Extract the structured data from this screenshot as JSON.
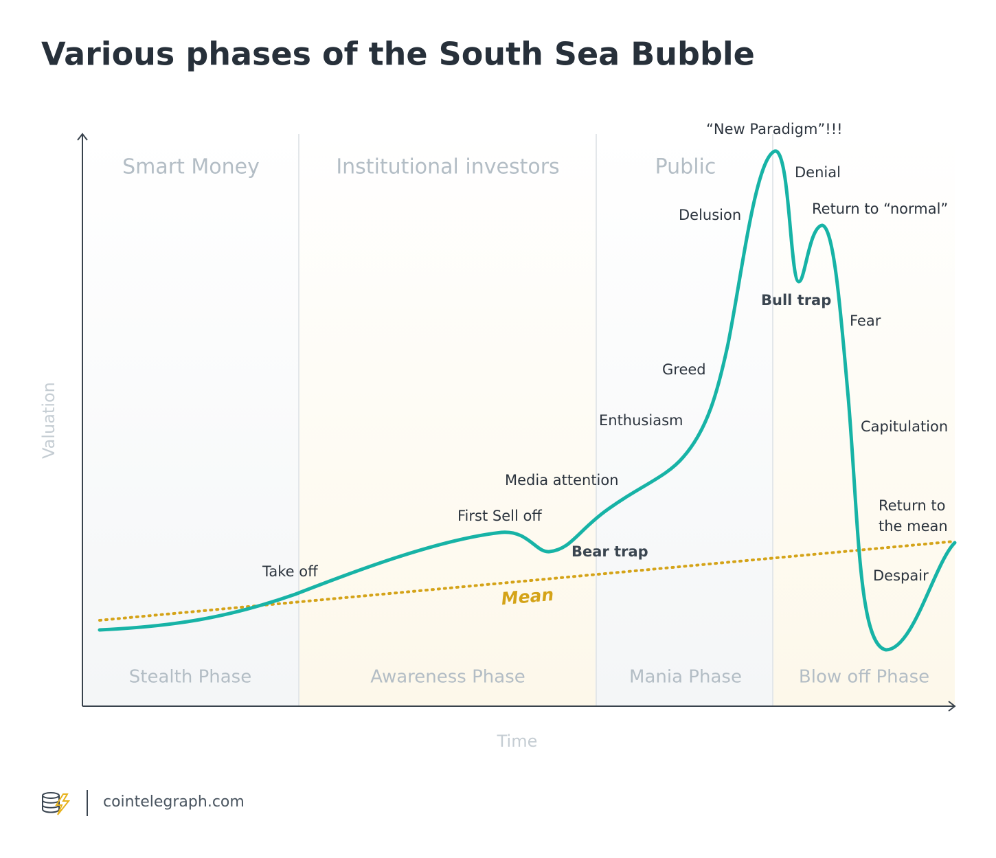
{
  "title": "Various phases of the South Sea Bubble",
  "axes": {
    "y": "Valuation",
    "x": "Time"
  },
  "investors": [
    "Smart Money",
    "Institutional investors",
    "Public"
  ],
  "phases": [
    "Stealth Phase",
    "Awareness Phase",
    "Mania Phase",
    "Blow off Phase"
  ],
  "annotations": [
    "Take off",
    "First Sell off",
    "Bear trap",
    "Media attention",
    "Enthusiasm",
    "Greed",
    "Delusion",
    "“New Paradigm”!!!",
    "Denial",
    "Bull trap",
    "Return to “normal”",
    "Fear",
    "Capitulation",
    "Despair"
  ],
  "return_to_mean": [
    "Return to",
    "the mean"
  ],
  "mean_label": "Mean",
  "footer": {
    "brand": "cointelegraph.com"
  }
}
